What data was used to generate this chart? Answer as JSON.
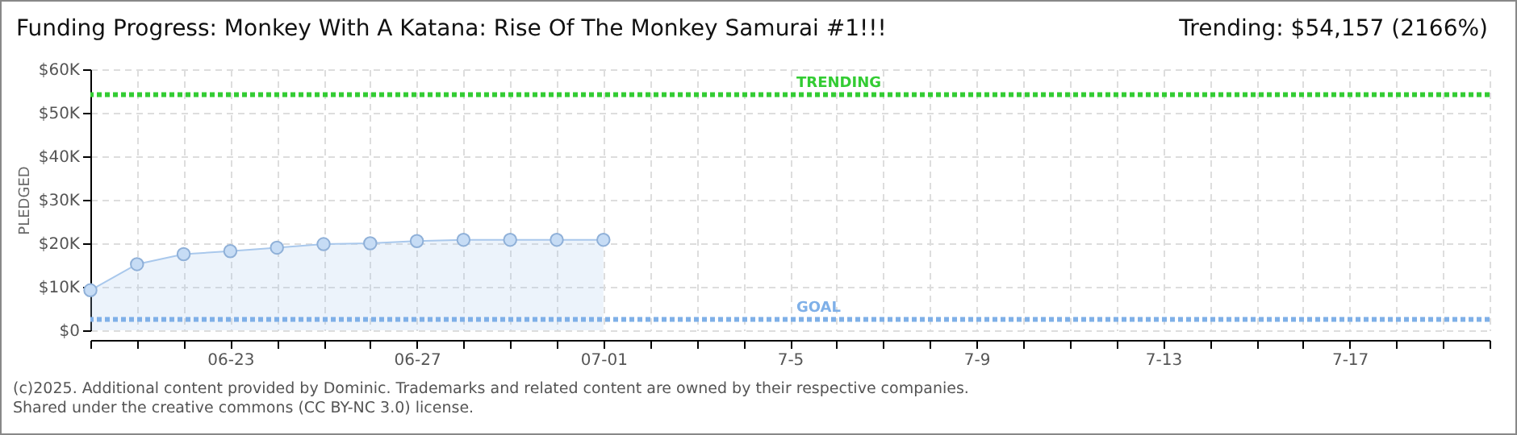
{
  "chart_data": {
    "type": "area",
    "title": "Funding Progress: Monkey With A Katana: Rise Of The Monkey Samurai #1!!!",
    "subtitle": "Trending: $54,157 (2166%)",
    "ylabel": "PLEDGED",
    "x": [
      "2025-06-20",
      "2025-06-21",
      "2025-06-22",
      "2025-06-23",
      "2025-06-24",
      "2025-06-25",
      "2025-06-26",
      "2025-06-27",
      "2025-06-28",
      "2025-06-29",
      "2025-06-30",
      "2025-07-01"
    ],
    "series": [
      {
        "color": "#a9c8ec",
        "values": [
          9200,
          15200,
          17500,
          18200,
          19000,
          19800,
          20000,
          20500,
          20800,
          20800,
          20800,
          20800
        ]
      }
    ],
    "marker": "circle",
    "grid": true,
    "xlim": [
      "2025-06-20",
      "2025-07-20"
    ],
    "xticks": [
      {
        "value": "2025-06-20",
        "label": null
      },
      {
        "value": "2025-06-21",
        "label": null
      },
      {
        "value": "2025-06-22",
        "label": null
      },
      {
        "value": "2025-06-23",
        "label": "06-23"
      },
      {
        "value": "2025-06-24",
        "label": null
      },
      {
        "value": "2025-06-25",
        "label": null
      },
      {
        "value": "2025-06-26",
        "label": null
      },
      {
        "value": "2025-06-27",
        "label": "06-27"
      },
      {
        "value": "2025-06-28",
        "label": null
      },
      {
        "value": "2025-06-29",
        "label": null
      },
      {
        "value": "2025-06-30",
        "label": null
      },
      {
        "value": "2025-07-01",
        "label": "07-01"
      },
      {
        "value": "2025-07-02",
        "label": null
      },
      {
        "value": "2025-07-03",
        "label": null
      },
      {
        "value": "2025-07-04",
        "label": null
      },
      {
        "value": "2025-07-05",
        "label": "7-5"
      },
      {
        "value": "2025-07-06",
        "label": null
      },
      {
        "value": "2025-07-07",
        "label": null
      },
      {
        "value": "2025-07-08",
        "label": null
      },
      {
        "value": "2025-07-09",
        "label": "7-9"
      },
      {
        "value": "2025-07-10",
        "label": null
      },
      {
        "value": "2025-07-11",
        "label": null
      },
      {
        "value": "2025-07-12",
        "label": null
      },
      {
        "value": "2025-07-13",
        "label": "7-13"
      },
      {
        "value": "2025-07-14",
        "label": null
      },
      {
        "value": "2025-07-15",
        "label": null
      },
      {
        "value": "2025-07-16",
        "label": null
      },
      {
        "value": "2025-07-17",
        "label": "7-17"
      },
      {
        "value": "2025-07-18",
        "label": null
      },
      {
        "value": "2025-07-19",
        "label": null
      },
      {
        "value": "2025-07-20",
        "label": null
      }
    ],
    "ylim": [
      0,
      60000
    ],
    "yticks": [
      {
        "value": 0,
        "label": "$0"
      },
      {
        "value": 10000,
        "label": "$10K"
      },
      {
        "value": 20000,
        "label": "$20K"
      },
      {
        "value": 30000,
        "label": "$30K"
      },
      {
        "value": 40000,
        "label": "$40K"
      },
      {
        "value": 50000,
        "label": "$50K"
      },
      {
        "value": 60000,
        "label": "$60K"
      }
    ],
    "ref_lines": [
      {
        "axis": "y",
        "value": 54157,
        "label": "TRENDING",
        "color": "#33cc33",
        "line_style": "dotted"
      },
      {
        "axis": "y",
        "value": 2500,
        "label": "GOAL",
        "color": "#7fb0e8",
        "line_style": "dotted"
      }
    ],
    "annotations": [
      "(c)2025. Additional content provided by Dominic. Trademarks and related content are owned by their respective companies.",
      "Shared under the creative commons (CC BY-NC 3.0) license."
    ]
  }
}
